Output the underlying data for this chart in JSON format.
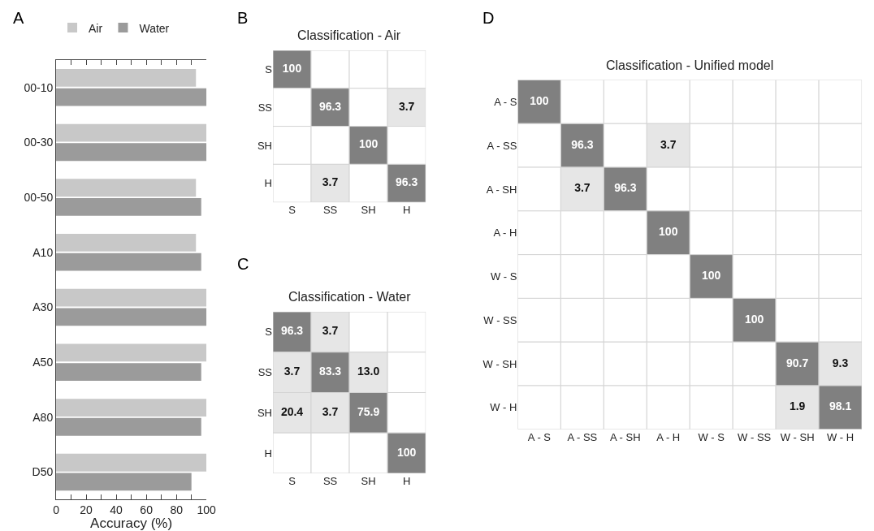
{
  "chart_data": [
    {
      "type": "bar",
      "orientation": "horizontal",
      "annotations": [
        "A"
      ],
      "xlabel": "Accuracy (%)",
      "categories": [
        "00-10",
        "00-30",
        "00-50",
        "A10",
        "A30",
        "A50",
        "A80",
        "D50"
      ],
      "series": [
        {
          "name": "Air",
          "color": "#c8c8c8",
          "values": [
            93,
            100,
            93,
            93,
            100,
            100,
            100,
            100
          ]
        },
        {
          "name": "Water",
          "color": "#9b9b9b",
          "values": [
            100,
            100,
            96.5,
            96.5,
            100,
            96.5,
            96.5,
            90
          ]
        }
      ],
      "xlim": [
        0,
        100
      ],
      "xticks": [
        0,
        {
          "value": 10,
          "label": null
        },
        20,
        {
          "value": 30,
          "label": null
        },
        40,
        {
          "value": 50,
          "label": null
        },
        60,
        {
          "value": 70,
          "label": null
        },
        80,
        {
          "value": 90,
          "label": null
        },
        100
      ],
      "legend": "top"
    },
    {
      "type": "heatmap",
      "annotations": [
        "B"
      ],
      "title": "Classification - Air",
      "categories": [
        "S",
        "SS",
        "SH",
        "H"
      ],
      "y_categories": [
        "S",
        "SS",
        "SH",
        "H"
      ],
      "data_labels": true,
      "cells": [
        [
          100,
          null,
          null,
          null
        ],
        [
          null,
          96.3,
          null,
          3.7
        ],
        [
          null,
          null,
          100,
          null
        ],
        [
          null,
          3.7,
          null,
          96.3
        ]
      ]
    },
    {
      "type": "heatmap",
      "annotations": [
        "C"
      ],
      "title": "Classification - Water",
      "categories": [
        "S",
        "SS",
        "SH",
        "H"
      ],
      "y_categories": [
        "S",
        "SS",
        "SH",
        "H"
      ],
      "data_labels": true,
      "cells": [
        [
          96.3,
          3.7,
          null,
          null
        ],
        [
          3.7,
          83.3,
          13.0,
          null
        ],
        [
          20.4,
          3.7,
          75.9,
          null
        ],
        [
          null,
          null,
          null,
          100
        ]
      ],
      "cell_labels": [
        [
          "96.3",
          "3.7",
          null,
          null
        ],
        [
          "3.7",
          "83.3",
          "13.0",
          null
        ],
        [
          "20.4",
          "3.7",
          "75.9",
          null
        ],
        [
          null,
          null,
          null,
          "100"
        ]
      ]
    },
    {
      "type": "heatmap",
      "annotations": [
        "D"
      ],
      "title": "Classification - Unified model",
      "categories": [
        "A - S",
        "A - SS",
        "A - SH",
        "A - H",
        "W - S",
        "W - SS",
        "W - SH",
        "W - H"
      ],
      "y_categories": [
        "A - S",
        "A - SS",
        "A - SH",
        "A - H",
        "W - S",
        "W - SS",
        "W - SH",
        "W - H"
      ],
      "data_labels": true,
      "cells": [
        [
          100,
          null,
          null,
          null,
          null,
          null,
          null,
          null
        ],
        [
          null,
          96.3,
          null,
          3.7,
          null,
          null,
          null,
          null
        ],
        [
          null,
          3.7,
          96.3,
          null,
          null,
          null,
          null,
          null
        ],
        [
          null,
          null,
          null,
          100,
          null,
          null,
          null,
          null
        ],
        [
          null,
          null,
          null,
          null,
          100,
          null,
          null,
          null
        ],
        [
          null,
          null,
          null,
          null,
          null,
          100,
          null,
          null
        ],
        [
          null,
          null,
          null,
          null,
          null,
          null,
          90.7,
          9.3
        ],
        [
          null,
          null,
          null,
          null,
          null,
          null,
          1.9,
          98.1
        ]
      ]
    }
  ]
}
